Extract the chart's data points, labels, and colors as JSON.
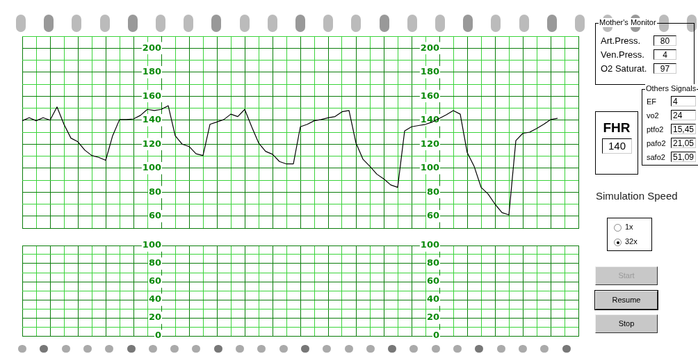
{
  "chart_data": [
    {
      "type": "line",
      "categories": [
        null,
        null,
        null,
        null,
        null,
        null,
        null,
        null,
        null,
        null,
        null,
        null,
        null,
        null,
        null,
        null,
        null,
        null,
        null,
        null,
        null,
        null,
        null,
        null,
        null,
        null,
        null,
        null,
        null,
        null,
        null,
        null,
        null,
        null,
        null,
        null,
        null,
        null,
        null,
        null,
        null,
        null,
        null,
        null,
        null,
        null,
        null,
        null,
        null,
        null,
        null,
        null,
        null,
        null,
        null,
        null,
        null,
        null,
        null,
        null,
        null,
        null,
        null,
        null,
        null,
        null,
        null,
        null,
        null,
        null,
        null,
        null,
        null,
        null,
        null,
        null,
        null,
        null,
        null,
        null,
        null
      ],
      "values": [
        139.5,
        142,
        139.5,
        142,
        140,
        151,
        136.5,
        125,
        122,
        115,
        110.5,
        109,
        106.5,
        127,
        140.5,
        140.5,
        141,
        144,
        149,
        148,
        149,
        152,
        127,
        120,
        118,
        112,
        110.5,
        136.5,
        138.5,
        140.5,
        145,
        143,
        149,
        134.5,
        121,
        114,
        111.5,
        105.5,
        103.5,
        103.5,
        134.5,
        136.5,
        139.5,
        140.5,
        142,
        143,
        147,
        148,
        121,
        107.5,
        101.5,
        95,
        91,
        86,
        84,
        131,
        134.5,
        135.5,
        136.5,
        138.5,
        141.5,
        144.5,
        148,
        145,
        113,
        101.5,
        84,
        78.5,
        70,
        63,
        61,
        123,
        129,
        130,
        133,
        136.5,
        140.5,
        141.5,
        null,
        null,
        null
      ],
      "color": "#000000",
      "ylim": [
        50,
        210
      ],
      "yticks": [
        {
          "value": 50,
          "label": null
        },
        60,
        {
          "value": 70,
          "label": null
        },
        80,
        {
          "value": 90,
          "label": null
        },
        100,
        {
          "value": 110,
          "label": null
        },
        120,
        {
          "value": 130,
          "label": null
        },
        140,
        {
          "value": 150,
          "label": null
        },
        160,
        {
          "value": 170,
          "label": null
        },
        180,
        {
          "value": 190,
          "label": null
        },
        200,
        {
          "value": 210,
          "label": null
        }
      ],
      "y2lim": [
        50,
        210
      ],
      "y2ticks": [
        60,
        80,
        100,
        120,
        140,
        160,
        180,
        200
      ],
      "grid": true,
      "tick_labels": "y"
    },
    {
      "type": "line",
      "categories": [
        null,
        null,
        null,
        null,
        null,
        null,
        null,
        null,
        null,
        null,
        null,
        null,
        null,
        null,
        null,
        null,
        null,
        null,
        null,
        null,
        null,
        null,
        null,
        null,
        null,
        null,
        null,
        null,
        null,
        null,
        null,
        null,
        null,
        null,
        null,
        null,
        null,
        null,
        null,
        null,
        null,
        null,
        null,
        null,
        null,
        null,
        null,
        null,
        null,
        null,
        null,
        null,
        null,
        null,
        null,
        null,
        null,
        null,
        null,
        null,
        null,
        null,
        null,
        null,
        null,
        null,
        null,
        null,
        null,
        null,
        null,
        null,
        null,
        null,
        null,
        null,
        null,
        null,
        null,
        null,
        null
      ],
      "ylim": [
        0,
        100
      ],
      "yticks": [
        0,
        {
          "value": 10,
          "label": null
        },
        20,
        {
          "value": 30,
          "label": null
        },
        40,
        {
          "value": 50,
          "label": null
        },
        60,
        {
          "value": 70,
          "label": null
        },
        80,
        {
          "value": 90,
          "label": null
        },
        100
      ],
      "y2lim": [
        0,
        100
      ],
      "y2ticks": [
        0,
        20,
        40,
        60,
        80,
        100
      ],
      "grid": true,
      "tick_labels": "y"
    },
    {
      "type": "other",
      "title": "Mother's Monitor",
      "annotations": [
        "Art.Press.",
        "80",
        "Ven.Press.",
        "4",
        "O2 Saturat.",
        "97"
      ]
    },
    {
      "type": "other",
      "title": "Others Signals",
      "annotations": [
        "EF",
        "4",
        "vo2",
        "24",
        "ptfo2",
        "15,45",
        "pafo2",
        "21,05",
        "safo2",
        "51,09"
      ]
    },
    {
      "type": "other",
      "title": "FHR",
      "annotations": [
        "140"
      ]
    },
    {
      "type": "other",
      "title": "Simulation Speed",
      "annotations": [
        "1x",
        "32x",
        "Start",
        "Resume",
        "Stop"
      ]
    }
  ]
}
